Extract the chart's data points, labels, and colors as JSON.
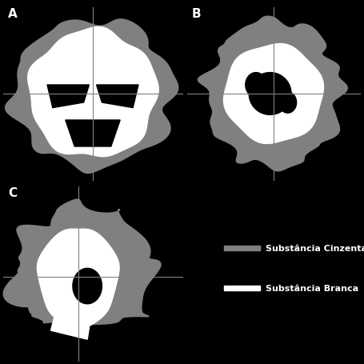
{
  "background_color": "#000000",
  "panel_A_label": "A",
  "panel_B_label": "B",
  "panel_C_label": "C",
  "legend_gray_label": "Substância Cinzenta",
  "legend_white_label": "Substância Branca",
  "gray_matter_color": "#808080",
  "white_matter_color": "#ffffff",
  "black_color": "#000000",
  "crosshair_color": "#808080",
  "label_color": "#ffffff",
  "label_fontsize": 11,
  "legend_fontsize": 9,
  "figsize": [
    4.56,
    4.56
  ],
  "dpi": 100
}
